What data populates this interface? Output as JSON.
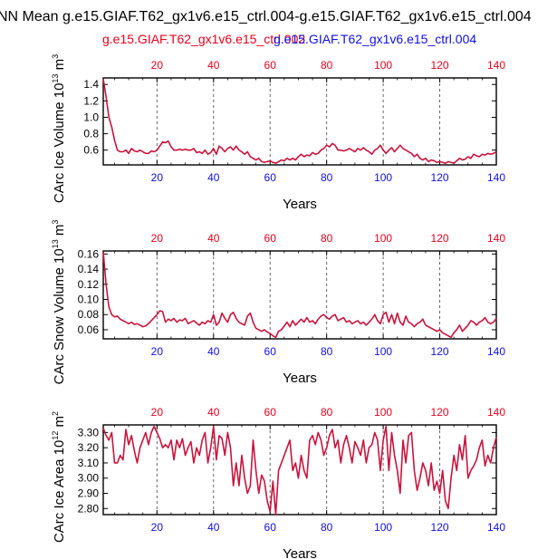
{
  "title": "NN Mean g.e15.GIAF.T62_gx1v6.e15_ctrl.004-g.e15.GIAF.T62_gx1v6.e15_ctrl.004",
  "legend": {
    "case1": "g.e15.GIAF.T62_gx1v6.e15_ctrl.002",
    "case2": "g.e15.GIAF.T62_gx1v6.e15_ctrl.004"
  },
  "colors": {
    "case1": "#e8001c",
    "case2": "#1010e0",
    "series": "#c8143c"
  },
  "chart_data": [
    {
      "type": "line",
      "ylabel": "CArc Ice Volume 10",
      "ylabel_exp": "13",
      "ylabel_unit": " m",
      "ylabel_unit_exp": "3",
      "xlabel": "Years",
      "xlim": [
        1,
        140
      ],
      "ylim": [
        0.42,
        1.48
      ],
      "yticks": [
        "1.4",
        "1.2",
        "1.0",
        "0.8",
        "0.6"
      ],
      "ytick_values": [
        1.4,
        1.2,
        1.0,
        0.8,
        0.6
      ],
      "xticks": [
        "20",
        "40",
        "60",
        "80",
        "100",
        "120",
        "140"
      ],
      "xtick_values": [
        20,
        40,
        60,
        80,
        100,
        120,
        140
      ],
      "series": [
        {
          "name": "CArc Ice Volume",
          "values": [
            1.47,
            1.25,
            1.0,
            0.88,
            0.72,
            0.6,
            0.58,
            0.58,
            0.6,
            0.56,
            0.62,
            0.59,
            0.58,
            0.6,
            0.58,
            0.56,
            0.56,
            0.59,
            0.58,
            0.6,
            0.65,
            0.7,
            0.69,
            0.71,
            0.64,
            0.6,
            0.6,
            0.61,
            0.6,
            0.61,
            0.6,
            0.6,
            0.62,
            0.57,
            0.58,
            0.56,
            0.6,
            0.55,
            0.57,
            0.62,
            0.55,
            0.65,
            0.62,
            0.58,
            0.62,
            0.64,
            0.6,
            0.65,
            0.6,
            0.58,
            0.55,
            0.58,
            0.52,
            0.5,
            0.48,
            0.5,
            0.46,
            0.45,
            0.46,
            0.47,
            0.45,
            0.44,
            0.46,
            0.48,
            0.47,
            0.5,
            0.48,
            0.5,
            0.48,
            0.52,
            0.55,
            0.52,
            0.54,
            0.53,
            0.57,
            0.55,
            0.56,
            0.6,
            0.62,
            0.66,
            0.64,
            0.68,
            0.66,
            0.6,
            0.6,
            0.59,
            0.6,
            0.62,
            0.6,
            0.58,
            0.62,
            0.6,
            0.63,
            0.6,
            0.58,
            0.55,
            0.6,
            0.62,
            0.66,
            0.6,
            0.56,
            0.6,
            0.63,
            0.58,
            0.62,
            0.66,
            0.62,
            0.6,
            0.58,
            0.56,
            0.52,
            0.55,
            0.5,
            0.48,
            0.5,
            0.46,
            0.48,
            0.47,
            0.45,
            0.46,
            0.45,
            0.44,
            0.46,
            0.45,
            0.44,
            0.47,
            0.5,
            0.48,
            0.49,
            0.52,
            0.5,
            0.55,
            0.53,
            0.52,
            0.55,
            0.54,
            0.56,
            0.55,
            0.56,
            0.58
          ]
        }
      ]
    },
    {
      "type": "line",
      "ylabel": "CArc Snow Volume 10",
      "ylabel_exp": "13",
      "ylabel_unit": " m",
      "ylabel_unit_exp": "3",
      "xlabel": "Years",
      "xlim": [
        1,
        140
      ],
      "ylim": [
        0.048,
        0.164
      ],
      "yticks": [
        "0.16",
        "0.14",
        "0.12",
        "0.10",
        "0.08",
        "0.06"
      ],
      "ytick_values": [
        0.16,
        0.14,
        0.12,
        0.1,
        0.08,
        0.06
      ],
      "xticks": [
        "20",
        "40",
        "60",
        "80",
        "100",
        "120",
        "140"
      ],
      "xtick_values": [
        20,
        40,
        60,
        80,
        100,
        120,
        140
      ],
      "series": [
        {
          "name": "CArc Snow Volume",
          "values": [
            0.163,
            0.12,
            0.09,
            0.08,
            0.077,
            0.078,
            0.074,
            0.072,
            0.07,
            0.068,
            0.07,
            0.067,
            0.068,
            0.066,
            0.064,
            0.065,
            0.068,
            0.072,
            0.076,
            0.08,
            0.085,
            0.084,
            0.07,
            0.074,
            0.072,
            0.075,
            0.07,
            0.073,
            0.072,
            0.075,
            0.068,
            0.07,
            0.072,
            0.069,
            0.066,
            0.07,
            0.068,
            0.072,
            0.07,
            0.08,
            0.066,
            0.07,
            0.082,
            0.075,
            0.07,
            0.08,
            0.083,
            0.075,
            0.07,
            0.068,
            0.066,
            0.078,
            0.082,
            0.07,
            0.062,
            0.06,
            0.058,
            0.06,
            0.057,
            0.055,
            0.052,
            0.05,
            0.058,
            0.06,
            0.065,
            0.07,
            0.064,
            0.072,
            0.066,
            0.07,
            0.074,
            0.07,
            0.076,
            0.07,
            0.072,
            0.068,
            0.074,
            0.078,
            0.08,
            0.076,
            0.074,
            0.078,
            0.08,
            0.072,
            0.074,
            0.076,
            0.07,
            0.072,
            0.068,
            0.07,
            0.072,
            0.068,
            0.07,
            0.066,
            0.07,
            0.074,
            0.08,
            0.072,
            0.068,
            0.08,
            0.083,
            0.07,
            0.08,
            0.068,
            0.082,
            0.07,
            0.066,
            0.078,
            0.07,
            0.068,
            0.064,
            0.068,
            0.07,
            0.074,
            0.066,
            0.064,
            0.062,
            0.06,
            0.058,
            0.06,
            0.056,
            0.054,
            0.052,
            0.05,
            0.056,
            0.06,
            0.066,
            0.058,
            0.062,
            0.066,
            0.072,
            0.07,
            0.066,
            0.07,
            0.072,
            0.076,
            0.07,
            0.068,
            0.07,
            0.075
          ]
        }
      ]
    },
    {
      "type": "line",
      "ylabel": "CArc Ice Area 10",
      "ylabel_exp": "12",
      "ylabel_unit": " m",
      "ylabel_unit_exp": "2",
      "xlabel": "Years",
      "xlim": [
        1,
        140
      ],
      "ylim": [
        2.76,
        3.35
      ],
      "yticks": [
        "3.30",
        "3.20",
        "3.10",
        "3.00",
        "2.90",
        "2.80"
      ],
      "ytick_values": [
        3.3,
        3.2,
        3.1,
        3.0,
        2.9,
        2.8
      ],
      "xticks": [
        "20",
        "40",
        "60",
        "80",
        "100",
        "120",
        "140"
      ],
      "xtick_values": [
        20,
        40,
        60,
        80,
        100,
        120,
        140
      ],
      "series": [
        {
          "name": "CArc Ice Area",
          "values": [
            3.33,
            3.28,
            3.25,
            3.3,
            3.1,
            3.1,
            3.15,
            3.12,
            3.32,
            3.22,
            3.28,
            3.18,
            3.1,
            3.2,
            3.25,
            3.3,
            3.22,
            3.3,
            3.34,
            3.3,
            3.26,
            3.2,
            3.22,
            3.2,
            3.25,
            3.12,
            3.25,
            3.2,
            3.26,
            3.15,
            3.2,
            3.24,
            3.1,
            3.2,
            3.15,
            3.25,
            3.3,
            3.1,
            3.2,
            3.34,
            3.12,
            3.28,
            3.26,
            3.15,
            3.3,
            3.2,
            2.95,
            3.1,
            2.95,
            3.15,
            3.0,
            2.9,
            2.95,
            3.25,
            3.05,
            2.9,
            3.02,
            2.98,
            2.85,
            2.78,
            2.98,
            2.76,
            3.05,
            3.1,
            3.15,
            3.2,
            3.25,
            3.05,
            3.1,
            3.0,
            3.15,
            3.05,
            3.0,
            3.25,
            3.28,
            3.22,
            3.3,
            3.25,
            3.15,
            3.2,
            3.28,
            3.32,
            3.2,
            3.25,
            3.1,
            3.22,
            3.28,
            3.2,
            3.1,
            3.24,
            3.2,
            3.15,
            3.25,
            3.1,
            3.2,
            3.22,
            3.3,
            3.25,
            3.05,
            3.25,
            3.34,
            3.05,
            3.3,
            3.15,
            3.05,
            2.9,
            3.25,
            3.1,
            3.28,
            3.3,
            3.05,
            2.92,
            3.0,
            3.1,
            3.05,
            2.95,
            3.1,
            2.92,
            2.98,
            2.9,
            3.05,
            2.85,
            2.8,
            3.0,
            3.15,
            3.05,
            3.22,
            3.12,
            3.28,
            3.0,
            3.05,
            3.08,
            3.12,
            3.2,
            3.25,
            3.08,
            3.15,
            3.1,
            3.2,
            3.27
          ]
        }
      ]
    }
  ]
}
